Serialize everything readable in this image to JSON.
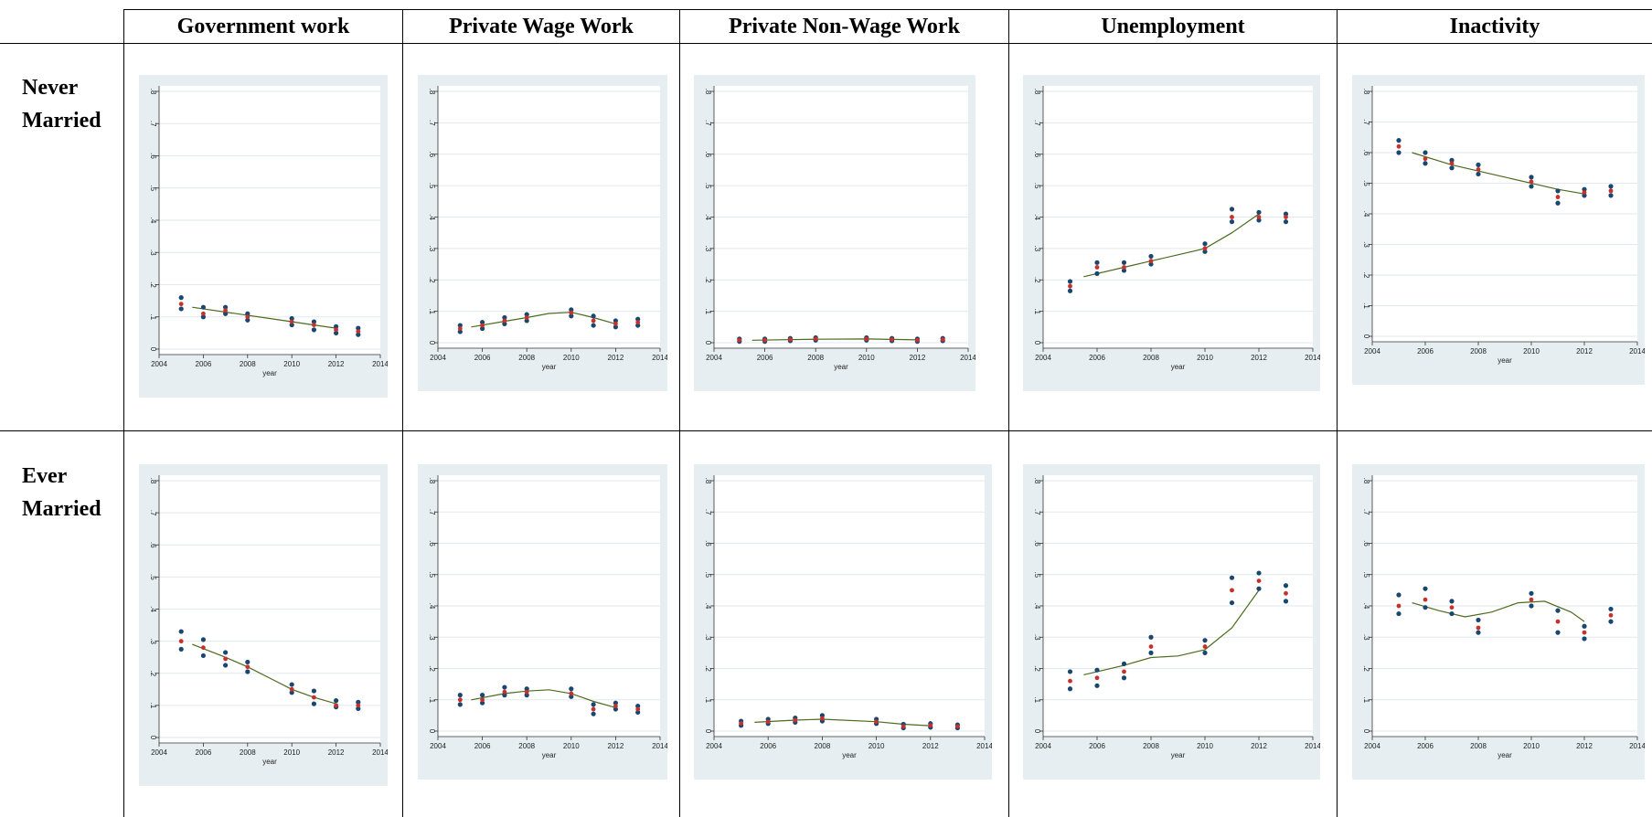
{
  "columns": [
    "Government work",
    "Private Wage Work",
    "Private Non-Wage Work",
    "Unemployment",
    "Inactivity"
  ],
  "rows": [
    {
      "line1": "Never",
      "line2": "Married"
    },
    {
      "line1": "Ever",
      "line2": "Married"
    }
  ],
  "colors": {
    "panel_bg": "#e6eef1",
    "plot_bg": "#ffffff",
    "grid": "#e3e8ec",
    "ci_point": "#1a476f",
    "mean_point": "#c8302a",
    "fit_line": "#4b6b1e"
  },
  "chart_data": [
    {
      "row": "Never Married",
      "column": "Government work",
      "type": "scatter",
      "xlabel": "year",
      "xlim": [
        2004,
        2014
      ],
      "ylim": [
        0,
        0.8
      ],
      "x": [
        2005,
        2006,
        2007,
        2008,
        2010,
        2011,
        2012,
        2013
      ],
      "mean": [
        0.14,
        0.11,
        0.12,
        0.1,
        0.085,
        0.075,
        0.06,
        0.055
      ],
      "ci_low": [
        0.125,
        0.1,
        0.11,
        0.09,
        0.075,
        0.06,
        0.05,
        0.045
      ],
      "ci_high": [
        0.16,
        0.13,
        0.13,
        0.11,
        0.095,
        0.085,
        0.07,
        0.065
      ],
      "fit_x": [
        2005.5,
        2007,
        2009,
        2011,
        2012
      ],
      "fit_y": [
        0.13,
        0.115,
        0.095,
        0.075,
        0.065
      ]
    },
    {
      "row": "Never Married",
      "column": "Private Wage Work",
      "type": "scatter",
      "xlabel": "year",
      "xlim": [
        2004,
        2014
      ],
      "ylim": [
        0,
        0.8
      ],
      "x": [
        2005,
        2006,
        2007,
        2008,
        2010,
        2011,
        2012,
        2013
      ],
      "mean": [
        0.045,
        0.055,
        0.07,
        0.08,
        0.095,
        0.07,
        0.06,
        0.065
      ],
      "ci_low": [
        0.035,
        0.045,
        0.06,
        0.07,
        0.085,
        0.055,
        0.05,
        0.055
      ],
      "ci_high": [
        0.055,
        0.065,
        0.08,
        0.09,
        0.105,
        0.085,
        0.07,
        0.075
      ],
      "fit_x": [
        2005.5,
        2007,
        2008,
        2009,
        2010,
        2011,
        2012
      ],
      "fit_y": [
        0.05,
        0.068,
        0.08,
        0.093,
        0.097,
        0.08,
        0.06
      ]
    },
    {
      "row": "Never Married",
      "column": "Private Non-Wage Work",
      "type": "scatter",
      "xlabel": "year",
      "xlim": [
        2004,
        2014
      ],
      "ylim": [
        0,
        0.8
      ],
      "x": [
        2005,
        2006,
        2007,
        2008,
        2010,
        2011,
        2012,
        2013
      ],
      "mean": [
        0.008,
        0.008,
        0.01,
        0.012,
        0.012,
        0.01,
        0.008,
        0.01
      ],
      "ci_low": [
        0.004,
        0.004,
        0.006,
        0.008,
        0.008,
        0.006,
        0.004,
        0.006
      ],
      "ci_high": [
        0.012,
        0.012,
        0.014,
        0.016,
        0.016,
        0.014,
        0.012,
        0.014
      ],
      "fit_x": [
        2005.5,
        2008,
        2010,
        2012
      ],
      "fit_y": [
        0.008,
        0.011,
        0.012,
        0.009
      ]
    },
    {
      "row": "Never Married",
      "column": "Unemployment",
      "type": "scatter",
      "xlabel": "year",
      "xlim": [
        2004,
        2014
      ],
      "ylim": [
        0,
        0.8
      ],
      "x": [
        2005,
        2006,
        2007,
        2008,
        2010,
        2011,
        2012,
        2013
      ],
      "mean": [
        0.18,
        0.24,
        0.24,
        0.26,
        0.3,
        0.4,
        0.4,
        0.4
      ],
      "ci_low": [
        0.165,
        0.22,
        0.23,
        0.25,
        0.29,
        0.385,
        0.39,
        0.385
      ],
      "ci_high": [
        0.195,
        0.255,
        0.255,
        0.275,
        0.315,
        0.425,
        0.415,
        0.41
      ],
      "fit_x": [
        2005.5,
        2007,
        2008,
        2009,
        2010,
        2011,
        2012
      ],
      "fit_y": [
        0.21,
        0.24,
        0.26,
        0.28,
        0.3,
        0.35,
        0.41
      ]
    },
    {
      "row": "Never Married",
      "column": "Inactivity",
      "type": "scatter",
      "xlabel": "year",
      "xlim": [
        2004,
        2014
      ],
      "ylim": [
        0,
        0.8
      ],
      "x": [
        2005,
        2006,
        2007,
        2008,
        2010,
        2011,
        2012,
        2013
      ],
      "mean": [
        0.62,
        0.58,
        0.565,
        0.545,
        0.505,
        0.455,
        0.47,
        0.475
      ],
      "ci_low": [
        0.6,
        0.565,
        0.55,
        0.53,
        0.49,
        0.435,
        0.46,
        0.46
      ],
      "ci_high": [
        0.64,
        0.6,
        0.575,
        0.56,
        0.52,
        0.475,
        0.48,
        0.49
      ],
      "fit_x": [
        2005.5,
        2007,
        2009,
        2011,
        2012
      ],
      "fit_y": [
        0.6,
        0.56,
        0.52,
        0.48,
        0.465
      ]
    },
    {
      "row": "Ever Married",
      "column": "Government work",
      "type": "scatter",
      "xlabel": "year",
      "xlim": [
        2004,
        2014
      ],
      "ylim": [
        0,
        0.8
      ],
      "x": [
        2005,
        2006,
        2007,
        2008,
        2010,
        2011,
        2012,
        2013
      ],
      "mean": [
        0.3,
        0.28,
        0.245,
        0.22,
        0.15,
        0.125,
        0.1,
        0.1
      ],
      "ci_low": [
        0.275,
        0.255,
        0.225,
        0.205,
        0.14,
        0.105,
        0.095,
        0.09
      ],
      "ci_high": [
        0.33,
        0.305,
        0.265,
        0.235,
        0.165,
        0.145,
        0.115,
        0.11
      ],
      "fit_x": [
        2005.5,
        2007,
        2008,
        2009,
        2010,
        2011,
        2012
      ],
      "fit_y": [
        0.29,
        0.25,
        0.22,
        0.185,
        0.15,
        0.125,
        0.105
      ]
    },
    {
      "row": "Ever Married",
      "column": "Private Wage Work",
      "type": "scatter",
      "xlabel": "year",
      "xlim": [
        2004,
        2014
      ],
      "ylim": [
        0,
        0.8
      ],
      "x": [
        2005,
        2006,
        2007,
        2008,
        2010,
        2011,
        2012,
        2013
      ],
      "mean": [
        0.1,
        0.1,
        0.125,
        0.125,
        0.12,
        0.07,
        0.08,
        0.07
      ],
      "ci_low": [
        0.085,
        0.09,
        0.115,
        0.115,
        0.11,
        0.055,
        0.07,
        0.06
      ],
      "ci_high": [
        0.115,
        0.115,
        0.14,
        0.135,
        0.135,
        0.085,
        0.09,
        0.08
      ],
      "fit_x": [
        2005.5,
        2007,
        2008,
        2009,
        2010,
        2011,
        2012
      ],
      "fit_y": [
        0.1,
        0.12,
        0.128,
        0.132,
        0.12,
        0.095,
        0.075
      ]
    },
    {
      "row": "Ever Married",
      "column": "Private Non-Wage Work",
      "type": "scatter",
      "xlabel": "year",
      "xlim": [
        2004,
        2014
      ],
      "ylim": [
        0,
        0.8
      ],
      "x": [
        2005,
        2006,
        2007,
        2008,
        2010,
        2011,
        2012,
        2013
      ],
      "mean": [
        0.025,
        0.03,
        0.035,
        0.04,
        0.03,
        0.015,
        0.018,
        0.015
      ],
      "ci_low": [
        0.018,
        0.024,
        0.028,
        0.032,
        0.024,
        0.01,
        0.012,
        0.01
      ],
      "ci_high": [
        0.032,
        0.038,
        0.042,
        0.05,
        0.038,
        0.022,
        0.024,
        0.02
      ],
      "fit_x": [
        2005.5,
        2007,
        2008,
        2010,
        2011,
        2012
      ],
      "fit_y": [
        0.028,
        0.035,
        0.038,
        0.03,
        0.022,
        0.017
      ]
    },
    {
      "row": "Ever Married",
      "column": "Unemployment",
      "type": "scatter",
      "xlabel": "year",
      "xlim": [
        2004,
        2014
      ],
      "ylim": [
        0,
        0.8
      ],
      "x": [
        2005,
        2006,
        2007,
        2008,
        2010,
        2011,
        2012,
        2013
      ],
      "mean": [
        0.16,
        0.17,
        0.19,
        0.27,
        0.27,
        0.45,
        0.48,
        0.44
      ],
      "ci_low": [
        0.135,
        0.145,
        0.17,
        0.25,
        0.25,
        0.41,
        0.455,
        0.415
      ],
      "ci_high": [
        0.19,
        0.195,
        0.215,
        0.3,
        0.29,
        0.49,
        0.505,
        0.465
      ],
      "fit_x": [
        2005.5,
        2007,
        2008,
        2009,
        2010,
        2011,
        2012
      ],
      "fit_y": [
        0.18,
        0.21,
        0.235,
        0.24,
        0.26,
        0.33,
        0.45
      ]
    },
    {
      "row": "Ever Married",
      "column": "Inactivity",
      "type": "scatter",
      "xlabel": "year",
      "xlim": [
        2004,
        2014
      ],
      "ylim": [
        0,
        0.8
      ],
      "x": [
        2005,
        2006,
        2007,
        2008,
        2010,
        2011,
        2012,
        2013
      ],
      "mean": [
        0.4,
        0.42,
        0.395,
        0.33,
        0.42,
        0.35,
        0.315,
        0.37
      ],
      "ci_low": [
        0.375,
        0.395,
        0.375,
        0.315,
        0.4,
        0.315,
        0.295,
        0.35
      ],
      "ci_high": [
        0.435,
        0.455,
        0.415,
        0.355,
        0.44,
        0.385,
        0.335,
        0.39
      ],
      "fit_x": [
        2005.5,
        2006.5,
        2007.5,
        2008.5,
        2009.5,
        2010.5,
        2011.5,
        2012
      ],
      "fit_y": [
        0.41,
        0.385,
        0.365,
        0.38,
        0.41,
        0.415,
        0.38,
        0.35
      ]
    }
  ]
}
